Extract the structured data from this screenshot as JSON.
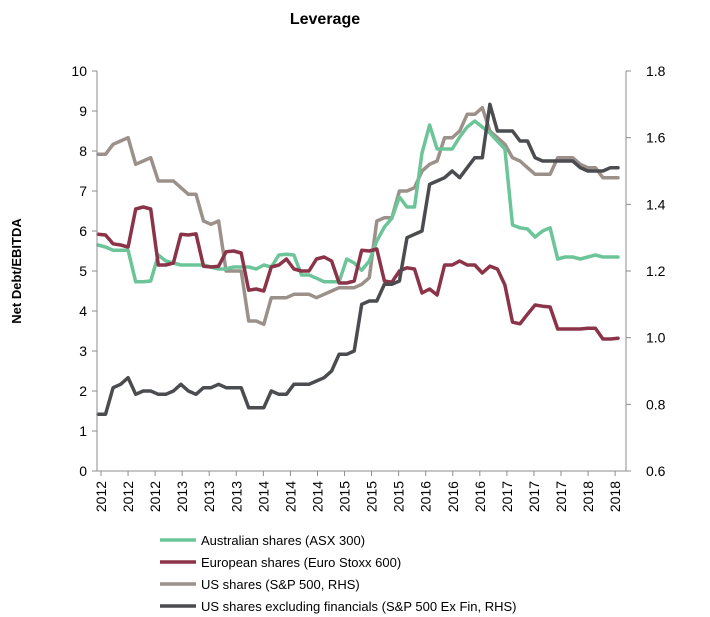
{
  "chart_data": {
    "type": "line",
    "title": "Leverage",
    "ylabel": "Net Debt/EBITDA",
    "y2label": "",
    "ylim": [
      0,
      10
    ],
    "y2lim": [
      0.6,
      1.8
    ],
    "yticks": [
      "0",
      "1",
      "2",
      "3",
      "4",
      "5",
      "6",
      "7",
      "8",
      "9",
      "10"
    ],
    "y2ticks": [
      "0.6",
      "0.8",
      "1.0",
      "1.2",
      "1.4",
      "1.6",
      "1.8"
    ],
    "xtick_labels": [
      "2012",
      "2012",
      "2012",
      "2013",
      "2013",
      "2013",
      "2014",
      "2014",
      "2014",
      "2015",
      "2015",
      "2015",
      "2016",
      "2016",
      "2016",
      "2017",
      "2017",
      "2017",
      "2018",
      "2018"
    ],
    "legend_position": "bottom",
    "colors": {
      "australian": "#6cc599",
      "european": "#8b3449",
      "us": "#9c918a",
      "us_ex_fin": "#4a4c50"
    },
    "series": [
      {
        "key": "australian",
        "name": "Australian shares (ASX 300)",
        "axis": "left",
        "values": [
          5.65,
          5.6,
          5.52,
          5.52,
          5.52,
          4.73,
          4.73,
          4.75,
          5.4,
          5.25,
          5.2,
          5.15,
          5.15,
          5.15,
          5.15,
          5.1,
          5.05,
          5.05,
          5.1,
          5.1,
          5.1,
          5.05,
          5.15,
          5.1,
          5.4,
          5.42,
          5.4,
          4.9,
          4.9,
          4.82,
          4.73,
          4.73,
          4.73,
          5.3,
          5.2,
          5.02,
          5.25,
          5.75,
          6.1,
          6.32,
          6.85,
          6.6,
          6.6,
          7.95,
          8.65,
          8.05,
          8.05,
          8.05,
          8.35,
          8.6,
          8.75,
          8.6,
          8.45,
          8.25,
          8.05,
          6.15,
          6.08,
          6.05,
          5.85,
          6.0,
          6.08,
          5.3,
          5.35,
          5.35,
          5.3,
          5.35,
          5.4,
          5.35,
          5.35,
          5.35
        ]
      },
      {
        "key": "european",
        "name": "European shares (Euro Stoxx 600)",
        "axis": "left",
        "values": [
          5.92,
          5.9,
          5.68,
          5.65,
          5.6,
          6.55,
          6.6,
          6.55,
          5.15,
          5.15,
          5.2,
          5.92,
          5.9,
          5.93,
          5.12,
          5.1,
          5.12,
          5.48,
          5.5,
          5.45,
          4.52,
          4.55,
          4.5,
          5.1,
          5.15,
          5.3,
          5.05,
          5.0,
          5.0,
          5.3,
          5.35,
          5.25,
          4.7,
          4.7,
          4.75,
          5.52,
          5.5,
          5.55,
          4.75,
          4.72,
          5.0,
          5.08,
          5.05,
          4.45,
          4.55,
          4.4,
          5.15,
          5.15,
          5.25,
          5.15,
          5.15,
          4.95,
          5.12,
          5.05,
          4.65,
          3.72,
          3.68,
          3.92,
          4.15,
          4.12,
          4.1,
          3.55,
          3.55,
          3.55,
          3.55,
          3.57,
          3.57,
          3.3,
          3.3,
          3.32
        ]
      },
      {
        "key": "us",
        "name": "US shares (S&P 500, RHS)",
        "axis": "right",
        "values": [
          1.55,
          1.55,
          1.58,
          1.59,
          1.6,
          1.52,
          1.53,
          1.54,
          1.47,
          1.47,
          1.47,
          1.45,
          1.43,
          1.43,
          1.35,
          1.34,
          1.35,
          1.2,
          1.2,
          1.2,
          1.05,
          1.05,
          1.04,
          1.12,
          1.12,
          1.12,
          1.13,
          1.13,
          1.13,
          1.12,
          1.13,
          1.14,
          1.15,
          1.15,
          1.15,
          1.16,
          1.18,
          1.35,
          1.36,
          1.36,
          1.44,
          1.44,
          1.45,
          1.5,
          1.52,
          1.53,
          1.6,
          1.6,
          1.62,
          1.67,
          1.67,
          1.69,
          1.62,
          1.6,
          1.58,
          1.54,
          1.53,
          1.51,
          1.49,
          1.49,
          1.49,
          1.54,
          1.54,
          1.54,
          1.52,
          1.51,
          1.51,
          1.48,
          1.48,
          1.48
        ]
      },
      {
        "key": "us_ex_fin",
        "name": "US shares excluding financials (S&P 500 Ex Fin, RHS)",
        "axis": "right",
        "values": [
          0.77,
          0.77,
          0.85,
          0.86,
          0.88,
          0.83,
          0.84,
          0.84,
          0.83,
          0.83,
          0.84,
          0.86,
          0.84,
          0.83,
          0.85,
          0.85,
          0.86,
          0.85,
          0.85,
          0.85,
          0.79,
          0.79,
          0.79,
          0.84,
          0.83,
          0.83,
          0.86,
          0.86,
          0.86,
          0.87,
          0.88,
          0.9,
          0.95,
          0.95,
          0.96,
          1.1,
          1.11,
          1.11,
          1.16,
          1.16,
          1.17,
          1.3,
          1.31,
          1.32,
          1.46,
          1.47,
          1.48,
          1.5,
          1.48,
          1.51,
          1.54,
          1.54,
          1.7,
          1.62,
          1.62,
          1.62,
          1.59,
          1.59,
          1.54,
          1.53,
          1.53,
          1.53,
          1.53,
          1.53,
          1.51,
          1.5,
          1.5,
          1.5,
          1.51,
          1.51
        ]
      }
    ]
  }
}
